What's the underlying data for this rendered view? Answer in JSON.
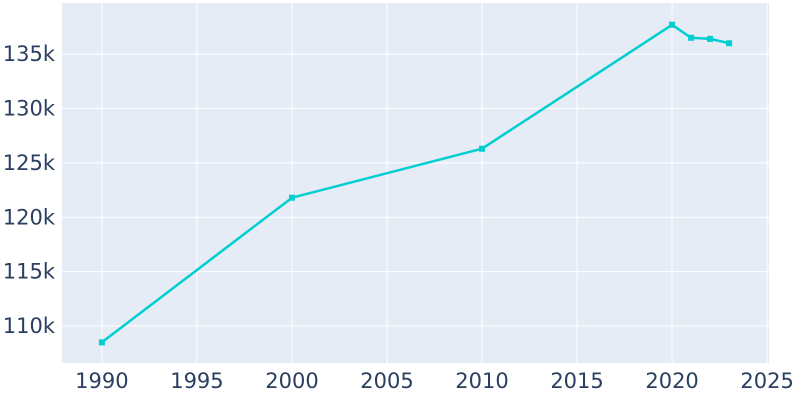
{
  "figure": {
    "background": "#ffffff",
    "plot_background": "#e5ecf6",
    "grid_color": "#ffffff",
    "tick_label_color": "#2a3f5f",
    "line_color": "#00CED1"
  },
  "chart_data": {
    "type": "line",
    "title": "",
    "xlabel": "",
    "ylabel": "",
    "mode": "lines+markers",
    "marker": "square",
    "x": [
      1990,
      2000,
      2010,
      2020,
      2021,
      2022,
      2023
    ],
    "y": [
      108500,
      121800,
      126300,
      137700,
      136500,
      136400,
      136000
    ],
    "x_ticks": [
      1990,
      1995,
      2000,
      2005,
      2010,
      2015,
      2020,
      2025
    ],
    "x_tick_labels": [
      "1990",
      "1995",
      "2000",
      "2005",
      "2010",
      "2015",
      "2020",
      "2025"
    ],
    "y_ticks": [
      110000,
      115000,
      120000,
      125000,
      130000,
      135000
    ],
    "y_tick_labels": [
      "110k",
      "115k",
      "120k",
      "125k",
      "130k",
      "135k"
    ],
    "x_range": [
      1987.9,
      2025.1
    ],
    "y_range": [
      106600,
      139700
    ],
    "grid": true,
    "legend": false
  }
}
